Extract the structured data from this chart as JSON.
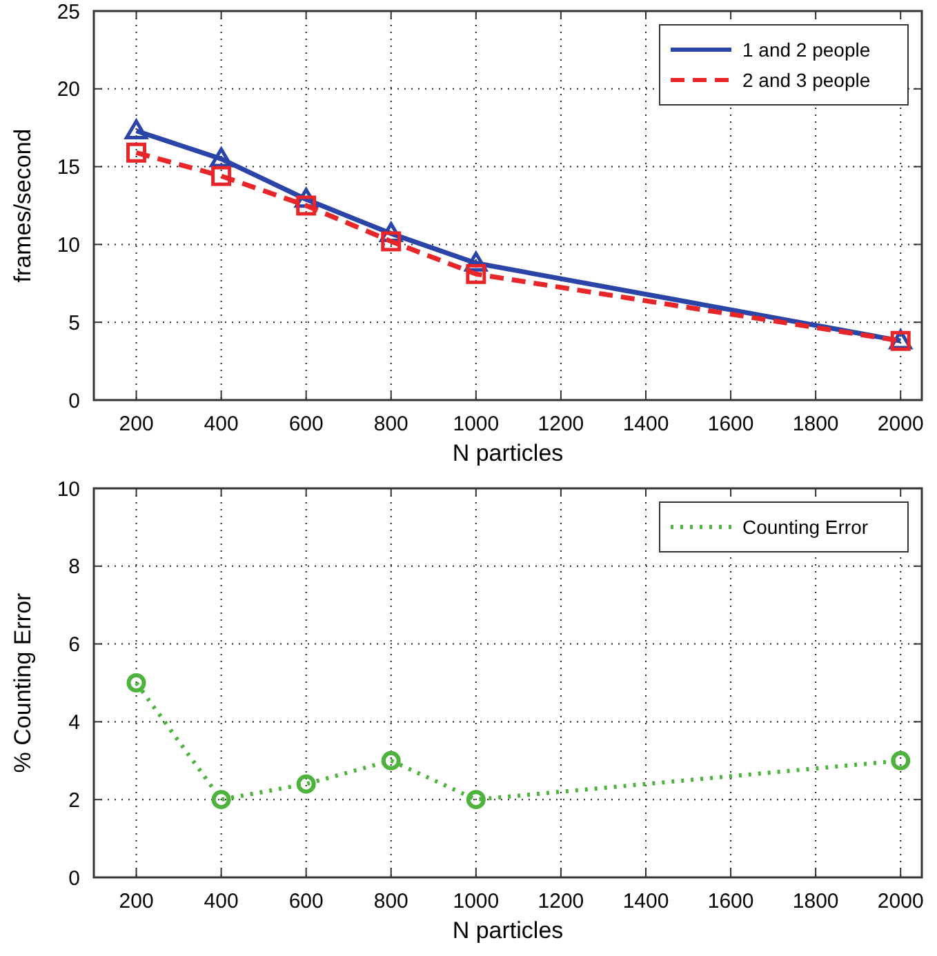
{
  "chart_data": [
    {
      "type": "line",
      "xlabel": "N particles",
      "ylabel": "frames/second",
      "x": [
        200,
        400,
        600,
        800,
        1000,
        2000
      ],
      "xlim": [
        100,
        2050
      ],
      "xticks": [
        200,
        400,
        600,
        800,
        1000,
        1200,
        1400,
        1600,
        1800,
        2000
      ],
      "ylim": [
        0,
        25
      ],
      "yticks": [
        0,
        5,
        10,
        15,
        20,
        25
      ],
      "grid": true,
      "legend": "top right",
      "series": [
        {
          "name": "1 and 2 people",
          "color": "#2b44a8",
          "values": [
            17.3,
            15.5,
            12.9,
            10.7,
            8.8,
            3.8
          ],
          "marker": "triangle",
          "line_style": "solid"
        },
        {
          "name": "2 and 3 people",
          "color": "#e8262a",
          "values": [
            15.9,
            14.4,
            12.5,
            10.2,
            8.1,
            3.8
          ],
          "marker": "square",
          "line_style": "dashed"
        }
      ]
    },
    {
      "type": "line",
      "xlabel": "N particles",
      "ylabel": "% Counting Error",
      "x": [
        200,
        400,
        600,
        800,
        1000,
        2000
      ],
      "xlim": [
        100,
        2050
      ],
      "xticks": [
        200,
        400,
        600,
        800,
        1000,
        1200,
        1400,
        1600,
        1800,
        2000
      ],
      "ylim": [
        0,
        10
      ],
      "yticks": [
        0,
        2,
        4,
        6,
        8,
        10
      ],
      "grid": true,
      "legend": "top right",
      "series": [
        {
          "name": "Counting Error",
          "color": "#4db33d",
          "values": [
            5,
            2,
            2.4,
            3,
            2,
            3
          ],
          "marker": "circle",
          "line_style": "dotted"
        }
      ]
    }
  ]
}
